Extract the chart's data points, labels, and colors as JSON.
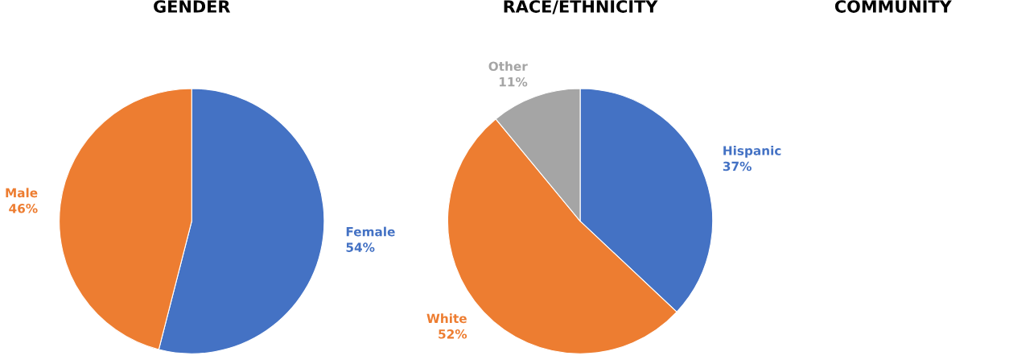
{
  "chart_data": [
    {
      "type": "pie",
      "title": "GENDER",
      "categories": [
        "Female",
        "Male"
      ],
      "values": [
        54,
        46
      ],
      "value_labels": [
        "54%",
        "46%"
      ],
      "colors": [
        "#4472c4",
        "#ed7d31"
      ]
    },
    {
      "type": "pie",
      "title": "RACE/ETHNICITY",
      "categories": [
        "Hispanic",
        "White",
        "Other"
      ],
      "values": [
        37,
        52,
        11
      ],
      "value_labels": [
        "37%",
        "52%",
        "11%"
      ],
      "colors": [
        "#4472c4",
        "#ed7d31",
        "#a5a5a5"
      ]
    },
    {
      "type": "other",
      "title": "COMMUNITY"
    }
  ]
}
